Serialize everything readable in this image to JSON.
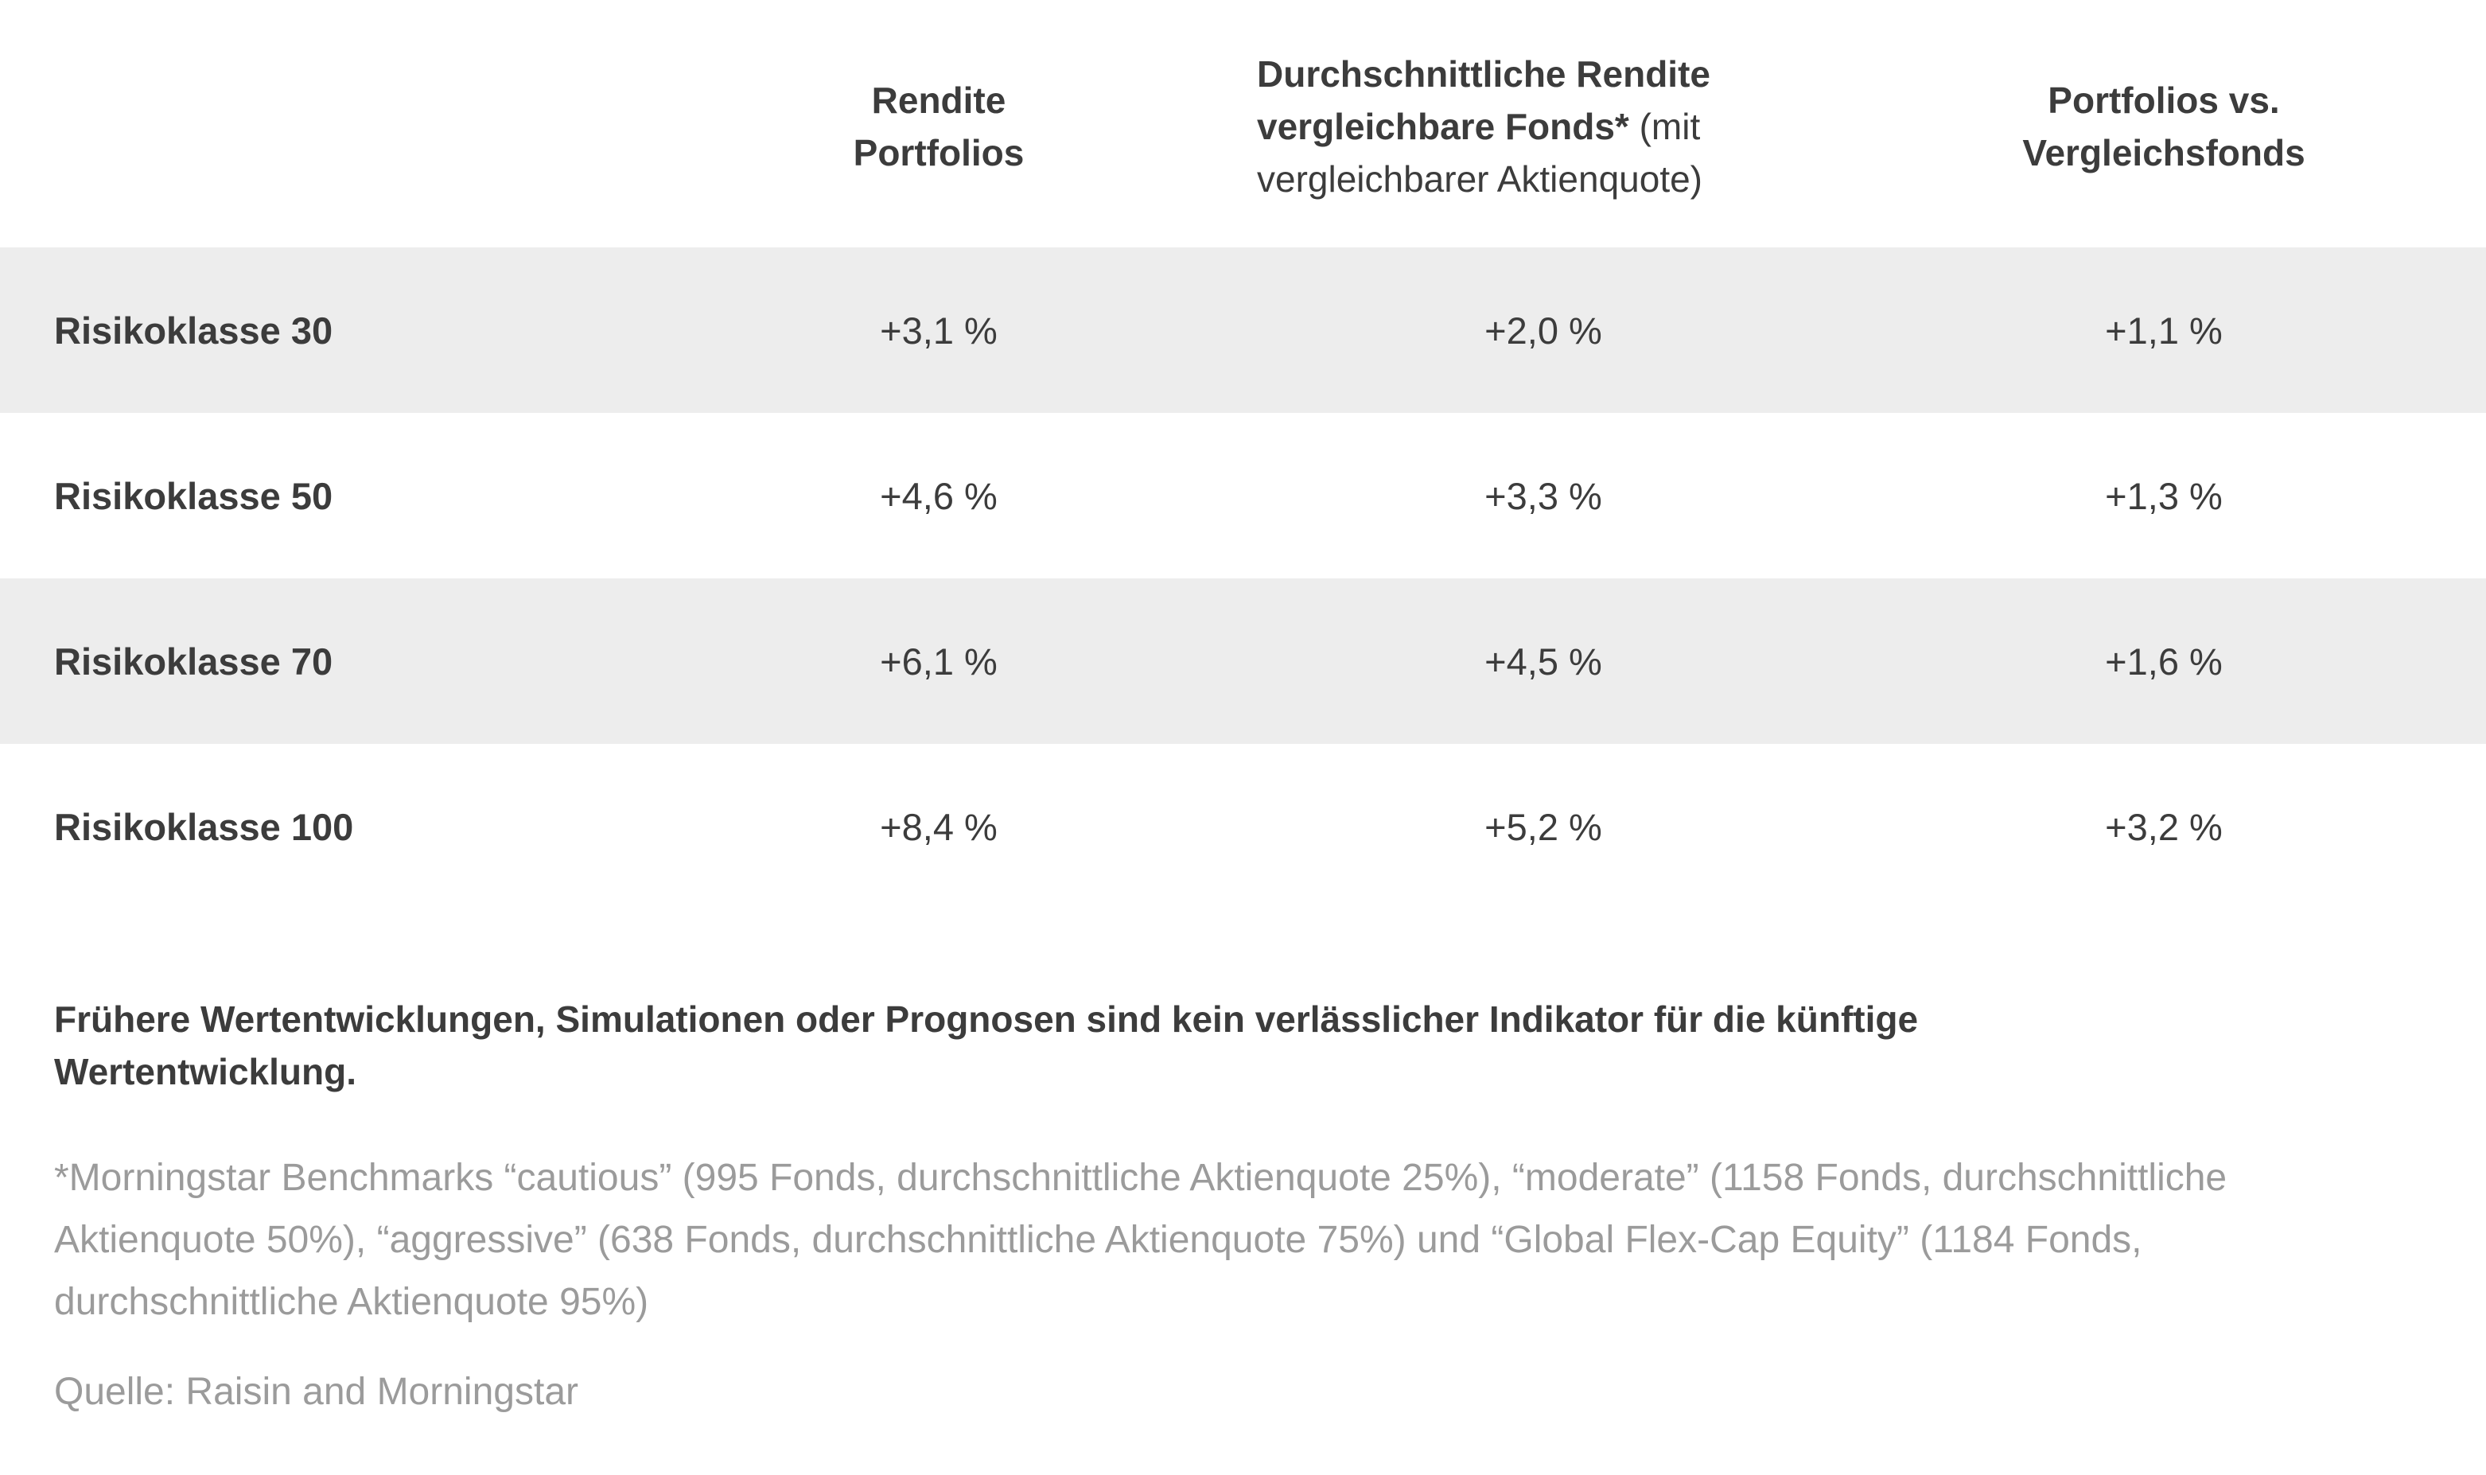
{
  "colors": {
    "background": "#ffffff",
    "text_dark": "#3c3c3c",
    "text_gray": "#9b9b9b",
    "row_stripe": "#ededed"
  },
  "table": {
    "header": {
      "col_portfolios": "Rendite Portfolios",
      "col_funds_bold": "Durchschnittliche Rendite vergleichbare Fonds*",
      "col_funds_regular": " (mit vergleichbarer Aktienquote)",
      "col_vs": "Portfolios vs. Vergleichsfonds"
    },
    "rows": [
      {
        "label": "Risikoklasse 30",
        "values": [
          "+3,1 %",
          "+2,0 %",
          "+1,1 %"
        ]
      },
      {
        "label": "Risikoklasse 50",
        "values": [
          "+4,6 %",
          "+3,3 %",
          "+1,3 %"
        ]
      },
      {
        "label": "Risikoklasse 70",
        "values": [
          "+6,1 %",
          "+4,5 %",
          "+1,6 %"
        ]
      },
      {
        "label": "Risikoklasse 100",
        "values": [
          "+8,4 %",
          "+5,2 %",
          "+3,2 %"
        ]
      }
    ]
  },
  "disclaimer": "Frühere Wertentwicklungen, Simulationen oder Prognosen sind kein verlässlicher Indikator für die künftige Wertentwicklung.",
  "footnote": "*Morningstar Benchmarks “cautious” (995 Fonds, durchschnittliche Aktienquote 25%), “moderate” (1158 Fonds, durchschnittliche Aktienquote 50%), “aggressive” (638 Fonds, durchschnittliche Aktienquote 75%) und “Global Flex-Cap Equity” (1184 Fonds, durchschnittliche Aktienquote 95%)",
  "source": "Quelle: Raisin and Morningstar",
  "chart_data": {
    "type": "table",
    "title": "",
    "columns": [
      "",
      "Rendite Portfolios",
      "Durchschnittliche Rendite vergleichbare Fonds* (mit vergleichbarer Aktienquote)",
      "Portfolios vs. Vergleichsfonds"
    ],
    "rows": [
      [
        "Risikoklasse 30",
        "+3,1 %",
        "+2,0 %",
        "+1,1 %"
      ],
      [
        "Risikoklasse 50",
        "+4,6 %",
        "+3,3 %",
        "+1,3 %"
      ],
      [
        "Risikoklasse 70",
        "+6,1 %",
        "+4,5 %",
        "+1,6 %"
      ],
      [
        "Risikoklasse 100",
        "+8,4 %",
        "+5,2 %",
        "+3,2 %"
      ]
    ],
    "rows_numeric_percent": [
      [
        3.1,
        2.0,
        1.1
      ],
      [
        4.6,
        3.3,
        1.3
      ],
      [
        6.1,
        4.5,
        1.6
      ],
      [
        8.4,
        5.2,
        3.2
      ]
    ],
    "notes": [
      "Frühere Wertentwicklungen, Simulationen oder Prognosen sind kein verlässlicher Indikator für die künftige Wertentwicklung.",
      "*Morningstar Benchmarks “cautious” (995 Fonds, durchschnittliche Aktienquote 25%), “moderate” (1158 Fonds, durchschnittliche Aktienquote 50%), “aggressive” (638 Fonds, durchschnittliche Aktienquote 75%) und “Global Flex-Cap Equity” (1184 Fonds, durchschnittliche Aktienquote 95%)",
      "Quelle: Raisin and Morningstar"
    ],
    "layout": {
      "striped_rows": "odd rows gray #ededed",
      "grid": false
    }
  }
}
